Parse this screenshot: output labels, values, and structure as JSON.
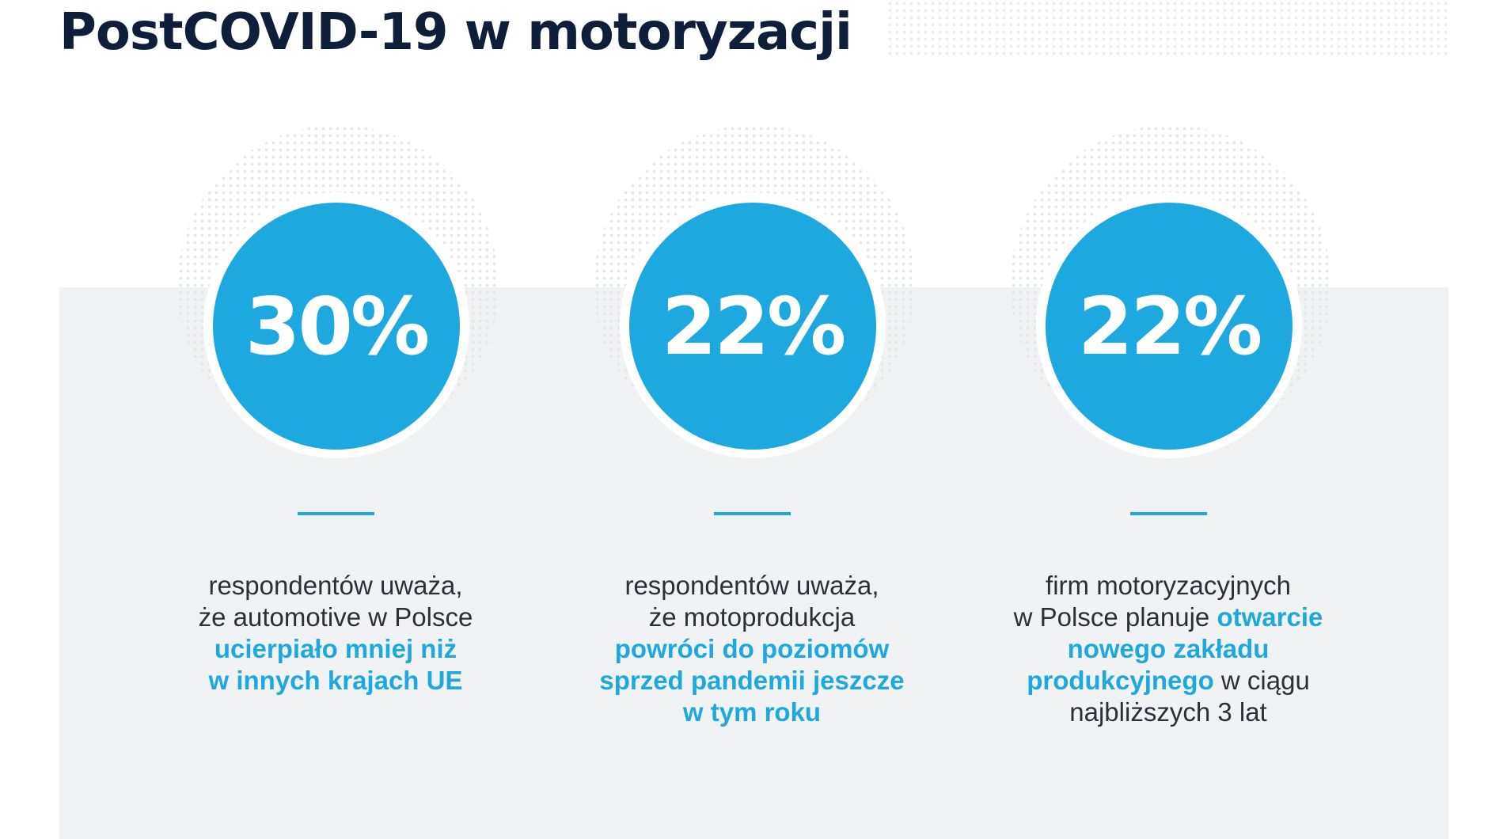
{
  "title": "PostCOVID-19 w motoryzacji",
  "accent_color": "#1da8df",
  "stats": [
    {
      "value": "30%",
      "lines": [
        [
          {
            "t": "respondentów uważa,",
            "hl": false
          }
        ],
        [
          {
            "t": "że automotive w Polsce",
            "hl": false
          }
        ],
        [
          {
            "t": "ucierpiało mniej niż",
            "hl": true
          }
        ],
        [
          {
            "t": "w innych krajach UE",
            "hl": true
          }
        ]
      ]
    },
    {
      "value": "22%",
      "lines": [
        [
          {
            "t": "respondentów uważa,",
            "hl": false
          }
        ],
        [
          {
            "t": "że motoprodukcja",
            "hl": false
          }
        ],
        [
          {
            "t": "powróci do poziomów",
            "hl": true
          }
        ],
        [
          {
            "t": "sprzed pandemii jeszcze",
            "hl": true
          }
        ],
        [
          {
            "t": "w tym roku",
            "hl": true
          }
        ]
      ]
    },
    {
      "value": "22%",
      "lines": [
        [
          {
            "t": "firm motoryzacyjnych",
            "hl": false
          }
        ],
        [
          {
            "t": "w Polsce planuje ",
            "hl": false
          },
          {
            "t": "otwarcie",
            "hl": true
          }
        ],
        [
          {
            "t": "nowego zakładu",
            "hl": true
          }
        ],
        [
          {
            "t": "produkcyjnego",
            "hl": true
          },
          {
            "t": " w ciągu",
            "hl": false
          }
        ],
        [
          {
            "t": "najbliższych 3 lat",
            "hl": false
          }
        ]
      ]
    }
  ]
}
